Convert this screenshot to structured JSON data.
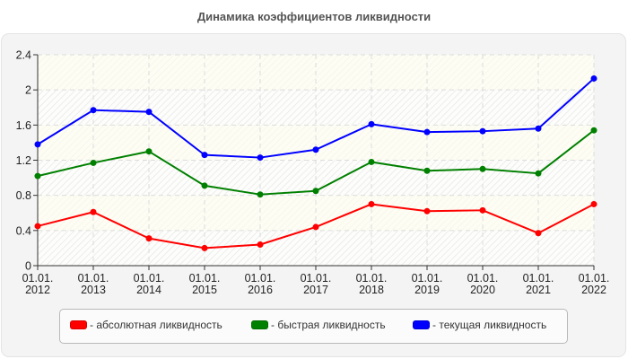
{
  "title": "Динамика коэффициентов ликвидности",
  "chart_data": {
    "type": "line",
    "title": "Динамика коэффициентов ликвидности",
    "xlabel": "",
    "ylabel": "",
    "categories": [
      "01.01. 2012",
      "01.01. 2013",
      "01.01. 2014",
      "01.01. 2015",
      "01.01. 2016",
      "01.01. 2017",
      "01.01. 2018",
      "01.01. 2019",
      "01.01. 2020",
      "01.01. 2021",
      "01.01. 2022"
    ],
    "x_tick_lines": [
      [
        "01.01.",
        "2012"
      ],
      [
        "01.01.",
        "2013"
      ],
      [
        "01.01.",
        "2014"
      ],
      [
        "01.01.",
        "2015"
      ],
      [
        "01.01.",
        "2016"
      ],
      [
        "01.01.",
        "2017"
      ],
      [
        "01.01.",
        "2018"
      ],
      [
        "01.01.",
        "2019"
      ],
      [
        "01.01.",
        "2020"
      ],
      [
        "01.01.",
        "2021"
      ],
      [
        "01.01.",
        "2022"
      ]
    ],
    "ylim": [
      0,
      2.4
    ],
    "yticks": [
      0,
      0.4,
      0.8,
      1.2,
      1.6,
      2,
      2.4
    ],
    "ytick_labels": [
      "0",
      "0.4",
      "0.8",
      "1.2",
      "1.6",
      "2",
      "2.4"
    ],
    "grid": true,
    "legend_position": "bottom",
    "series": [
      {
        "name": "абсолютная ликвидность",
        "color": "#ff0000",
        "values": [
          0.45,
          0.61,
          0.31,
          0.2,
          0.24,
          0.44,
          0.7,
          0.62,
          0.63,
          0.37,
          0.7
        ]
      },
      {
        "name": "быстрая ликвидность",
        "color": "#008000",
        "values": [
          1.02,
          1.17,
          1.3,
          0.91,
          0.81,
          0.85,
          1.18,
          1.08,
          1.1,
          1.05,
          1.54
        ]
      },
      {
        "name": "текущая ликвидность",
        "color": "#0000ff",
        "values": [
          1.38,
          1.77,
          1.75,
          1.26,
          1.23,
          1.32,
          1.61,
          1.52,
          1.53,
          1.56,
          2.13
        ]
      }
    ]
  },
  "legend": {
    "items": [
      {
        "label": "- абсолютная ликвидность",
        "color": "#ff0000"
      },
      {
        "label": "- быстрая ликвидность",
        "color": "#008000"
      },
      {
        "label": "- текущая ликвидность",
        "color": "#0000ff"
      }
    ]
  }
}
